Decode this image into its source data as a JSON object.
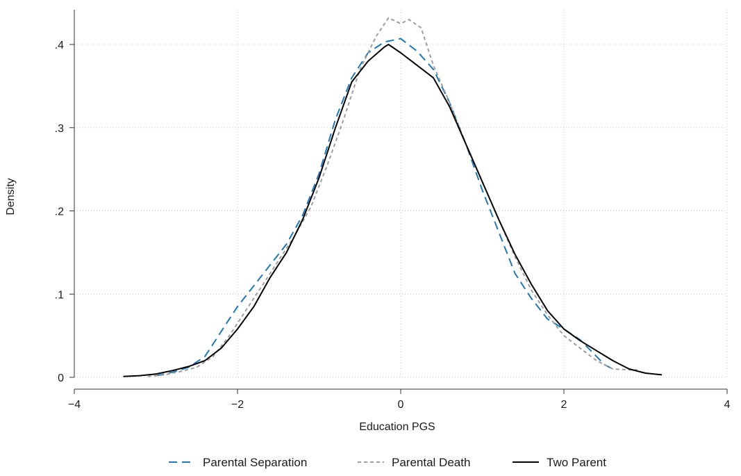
{
  "chart_data": {
    "type": "line",
    "title": "",
    "xlabel": "Education PGS",
    "ylabel": "Density",
    "xlim": [
      -4,
      4
    ],
    "ylim": [
      0,
      0.4
    ],
    "x_ticks": [
      -4,
      -2,
      0,
      2,
      4
    ],
    "x_tick_labels": [
      "−4",
      "−2",
      "0",
      "2",
      "4"
    ],
    "y_ticks": [
      0,
      0.1,
      0.2,
      0.3,
      0.4
    ],
    "y_tick_labels": [
      "0",
      ".1",
      ".2",
      ".3",
      ".4"
    ],
    "grid": true,
    "legend_position": "bottom",
    "series": [
      {
        "name": "Parental Separation",
        "color": "#1f77b4",
        "style": "dashed",
        "x": [
          -3.0,
          -2.8,
          -2.6,
          -2.4,
          -2.2,
          -2.0,
          -1.8,
          -1.6,
          -1.4,
          -1.2,
          -1.0,
          -0.8,
          -0.6,
          -0.4,
          -0.2,
          0.0,
          0.2,
          0.4,
          0.6,
          0.8,
          1.0,
          1.2,
          1.4,
          1.6,
          1.8,
          2.0,
          2.2,
          2.4,
          2.5,
          2.6
        ],
        "y": [
          0.002,
          0.006,
          0.012,
          0.025,
          0.055,
          0.085,
          0.11,
          0.135,
          0.16,
          0.195,
          0.245,
          0.31,
          0.36,
          0.39,
          0.403,
          0.407,
          0.392,
          0.37,
          0.33,
          0.28,
          0.225,
          0.175,
          0.125,
          0.095,
          0.07,
          0.058,
          0.045,
          0.025,
          0.015,
          0.01
        ]
      },
      {
        "name": "Parental Death",
        "color": "#9e9e9e",
        "style": "dotted",
        "x": [
          -3.1,
          -2.9,
          -2.7,
          -2.5,
          -2.3,
          -2.1,
          -1.9,
          -1.7,
          -1.5,
          -1.3,
          -1.1,
          -0.9,
          -0.7,
          -0.5,
          -0.3,
          -0.15,
          0.0,
          0.1,
          0.25,
          0.4,
          0.6,
          0.8,
          1.0,
          1.2,
          1.4,
          1.6,
          1.8,
          2.0,
          2.2,
          2.4,
          2.6,
          2.8,
          2.9
        ],
        "y": [
          0.001,
          0.003,
          0.007,
          0.012,
          0.025,
          0.05,
          0.08,
          0.11,
          0.14,
          0.17,
          0.205,
          0.255,
          0.31,
          0.37,
          0.41,
          0.432,
          0.425,
          0.43,
          0.42,
          0.375,
          0.33,
          0.28,
          0.235,
          0.19,
          0.145,
          0.105,
          0.075,
          0.05,
          0.035,
          0.02,
          0.01,
          0.009,
          0.009
        ]
      },
      {
        "name": "Two Parent",
        "color": "#000000",
        "style": "solid",
        "x": [
          -3.4,
          -3.2,
          -3.0,
          -2.8,
          -2.6,
          -2.4,
          -2.2,
          -2.0,
          -1.8,
          -1.6,
          -1.4,
          -1.2,
          -1.0,
          -0.8,
          -0.6,
          -0.4,
          -0.2,
          -0.15,
          0.0,
          0.2,
          0.4,
          0.6,
          0.8,
          1.0,
          1.2,
          1.4,
          1.6,
          1.8,
          2.0,
          2.2,
          2.4,
          2.6,
          2.8,
          3.0,
          3.2
        ],
        "y": [
          0.001,
          0.002,
          0.004,
          0.008,
          0.013,
          0.02,
          0.035,
          0.058,
          0.085,
          0.12,
          0.15,
          0.19,
          0.24,
          0.3,
          0.355,
          0.38,
          0.397,
          0.4,
          0.39,
          0.375,
          0.36,
          0.325,
          0.28,
          0.235,
          0.19,
          0.148,
          0.112,
          0.08,
          0.058,
          0.044,
          0.032,
          0.02,
          0.01,
          0.005,
          0.003
        ]
      }
    ]
  }
}
